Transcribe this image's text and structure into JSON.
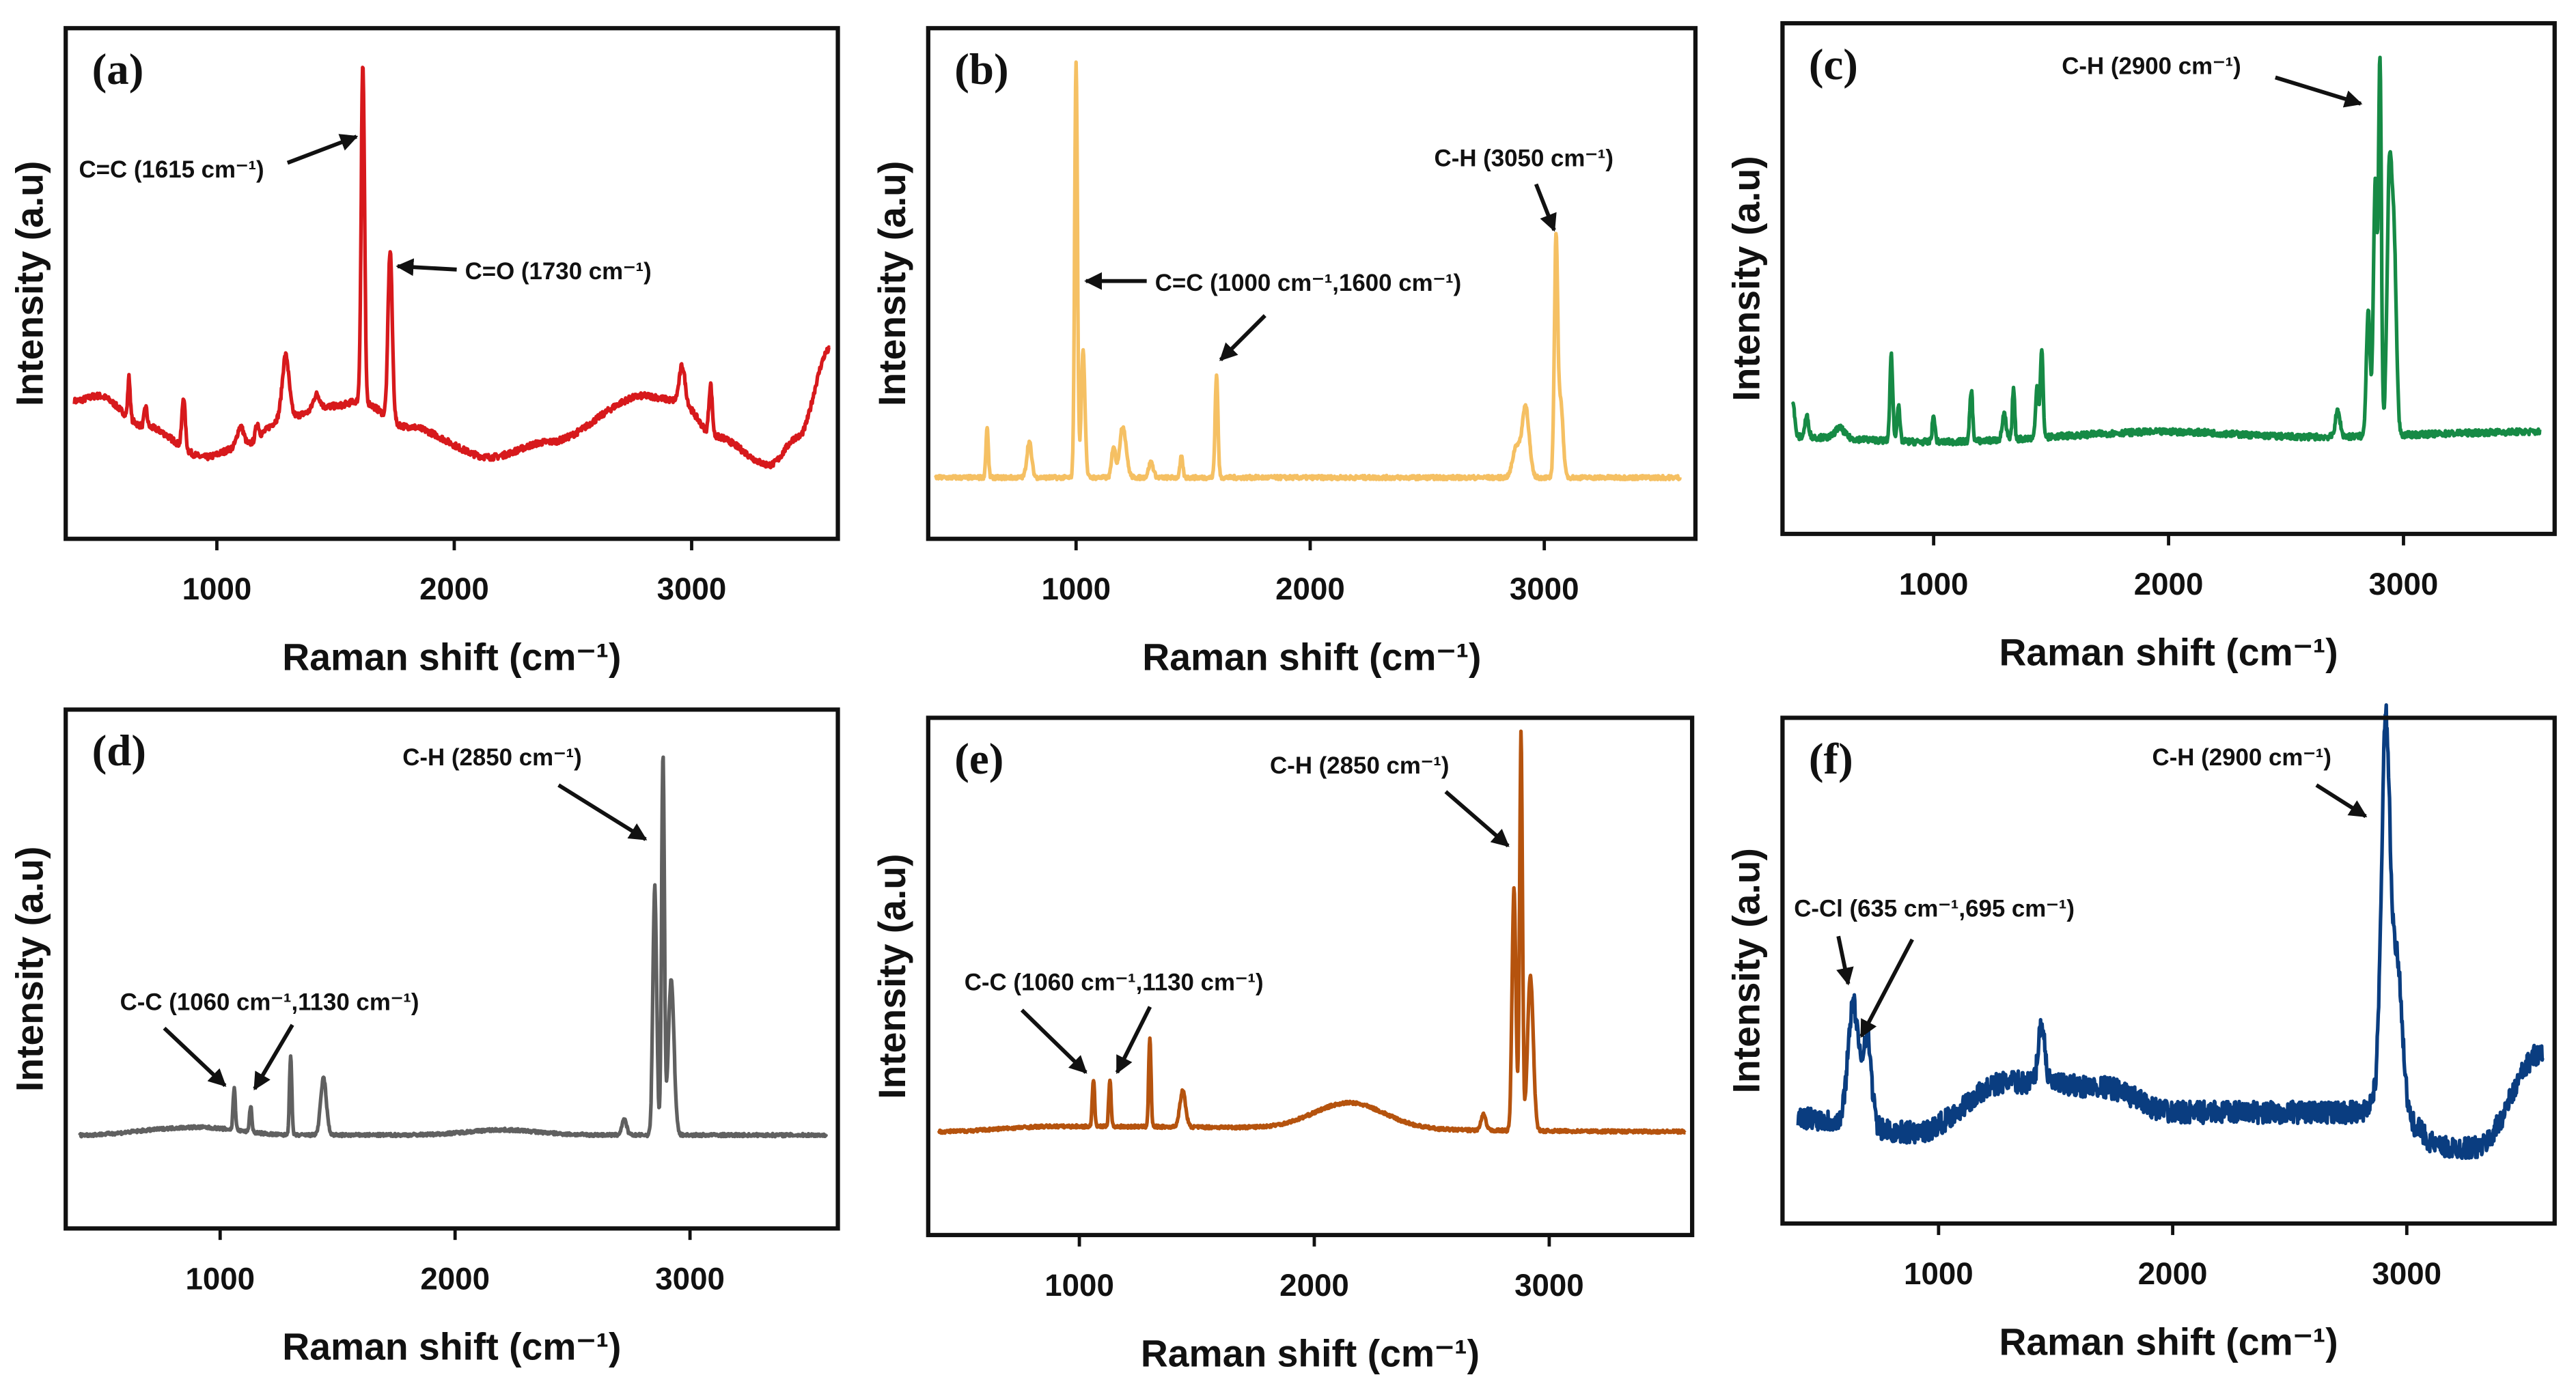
{
  "chart_data": [
    {
      "type": "line",
      "panel_label": "(a)",
      "color": "#d7191c",
      "xlabel": "Raman shift (cm⁻¹)",
      "ylabel": "Intensity (a.u)",
      "xlim": [
        360,
        3620
      ],
      "ylim": [
        0,
        1
      ],
      "xticks": [
        "1000",
        "2000",
        "3000"
      ],
      "baseline": [
        [
          400,
          0.27
        ],
        [
          500,
          0.28
        ],
        [
          700,
          0.22
        ],
        [
          950,
          0.16
        ],
        [
          1100,
          0.18
        ],
        [
          1300,
          0.24
        ],
        [
          1500,
          0.26
        ],
        [
          1600,
          0.27
        ],
        [
          1800,
          0.22
        ],
        [
          2150,
          0.16
        ],
        [
          2400,
          0.19
        ],
        [
          2800,
          0.28
        ],
        [
          2950,
          0.27
        ],
        [
          3100,
          0.2
        ],
        [
          3330,
          0.145
        ],
        [
          3450,
          0.2
        ],
        [
          3580,
          0.37
        ]
      ],
      "peaks": [
        [
          630,
          0.08,
          5
        ],
        [
          700,
          0.04,
          6
        ],
        [
          860,
          0.1,
          7
        ],
        [
          1100,
          0.04,
          14
        ],
        [
          1170,
          0.03,
          7
        ],
        [
          1290,
          0.12,
          14
        ],
        [
          1420,
          0.03,
          14
        ],
        [
          1615,
          0.66,
          7
        ],
        [
          1730,
          0.33,
          9
        ],
        [
          2960,
          0.07,
          12
        ],
        [
          3080,
          0.1,
          7
        ]
      ],
      "noise": 0.006,
      "annotations": [
        {
          "text": "C=C (1615 cm⁻¹)",
          "peak": 1615
        },
        {
          "text": "C=O (1730 cm⁻¹)",
          "peak": 1730
        }
      ]
    },
    {
      "type": "line",
      "panel_label": "(b)",
      "color": "#f5c063",
      "xlabel": "Raman shift (cm⁻¹)",
      "ylabel": "Intensity (a.u)",
      "xlim": [
        360,
        3620
      ],
      "ylim": [
        0,
        1
      ],
      "xticks": [
        "1000",
        "2000",
        "3000"
      ],
      "baseline": [
        [
          400,
          0.12
        ],
        [
          3580,
          0.12
        ]
      ],
      "peaks": [
        [
          620,
          0.1,
          5
        ],
        [
          800,
          0.07,
          10
        ],
        [
          1000,
          0.81,
          6
        ],
        [
          1030,
          0.25,
          8
        ],
        [
          1160,
          0.06,
          8
        ],
        [
          1200,
          0.1,
          14
        ],
        [
          1320,
          0.03,
          10
        ],
        [
          1450,
          0.04,
          6
        ],
        [
          1600,
          0.2,
          6
        ],
        [
          2880,
          0.06,
          15
        ],
        [
          2920,
          0.14,
          15
        ],
        [
          3050,
          0.46,
          7
        ],
        [
          3070,
          0.15,
          10
        ]
      ],
      "noise": 0.004,
      "annotations": [
        {
          "text": "C-H (3050 cm⁻¹)",
          "peak": 3050
        },
        {
          "text": "C=C (1000 cm⁻¹,1600 cm⁻¹)",
          "peak": 1000
        }
      ]
    },
    {
      "type": "line",
      "panel_label": "(c)",
      "color": "#168a45",
      "xlabel": "Raman shift (cm⁻¹)",
      "ylabel": "Intensity (a.u)",
      "xlim": [
        360,
        3620
      ],
      "ylim": [
        0,
        1
      ],
      "xticks": [
        "1000",
        "2000",
        "3000"
      ],
      "baseline": [
        [
          400,
          0.19
        ],
        [
          1000,
          0.18
        ],
        [
          2000,
          0.2
        ],
        [
          2600,
          0.19
        ],
        [
          3580,
          0.2
        ]
      ],
      "peaks": [
        [
          400,
          0.07,
          8
        ],
        [
          460,
          0.04,
          8
        ],
        [
          600,
          0.02,
          20
        ],
        [
          820,
          0.17,
          6
        ],
        [
          850,
          0.07,
          6
        ],
        [
          1000,
          0.05,
          6
        ],
        [
          1160,
          0.1,
          6
        ],
        [
          1300,
          0.05,
          8
        ],
        [
          1340,
          0.1,
          5
        ],
        [
          1440,
          0.1,
          6
        ],
        [
          1460,
          0.17,
          6
        ],
        [
          2720,
          0.05,
          10
        ],
        [
          2850,
          0.25,
          8
        ],
        [
          2880,
          0.5,
          8
        ],
        [
          2900,
          0.72,
          6
        ],
        [
          2940,
          0.5,
          10
        ],
        [
          2960,
          0.35,
          10
        ]
      ],
      "noise": 0.006,
      "annotations": [
        {
          "text": "C-H (2900 cm⁻¹)",
          "peak": 2900
        }
      ]
    },
    {
      "type": "line",
      "panel_label": "(d)",
      "color": "#606060",
      "xlabel": "Raman shift (cm⁻¹)",
      "ylabel": "Intensity (a.u)",
      "xlim": [
        360,
        3620
      ],
      "ylim": [
        0,
        1
      ],
      "xticks": [
        "1000",
        "2000",
        "3000"
      ],
      "baseline": [
        [
          400,
          0.18
        ],
        [
          900,
          0.195
        ],
        [
          1300,
          0.18
        ],
        [
          3580,
          0.18
        ]
      ],
      "peaks": [
        [
          1060,
          0.08,
          5
        ],
        [
          1130,
          0.05,
          5
        ],
        [
          1300,
          0.15,
          5
        ],
        [
          1440,
          0.11,
          12
        ],
        [
          2200,
          0.01,
          150
        ],
        [
          2720,
          0.03,
          10
        ],
        [
          2850,
          0.48,
          8
        ],
        [
          2885,
          0.73,
          6
        ],
        [
          2920,
          0.3,
          12
        ]
      ],
      "noise": 0.003,
      "annotations": [
        {
          "text": "C-H (2850 cm⁻¹)",
          "peak": 2850
        },
        {
          "text": "C-C (1060 cm⁻¹,1130 cm⁻¹)",
          "peak": 1060
        }
      ]
    },
    {
      "type": "line",
      "panel_label": "(e)",
      "color": "#b5530e",
      "xlabel": "Raman shift (cm⁻¹)",
      "ylabel": "Intensity (a.u)",
      "xlim": [
        360,
        3620
      ],
      "ylim": [
        0,
        1
      ],
      "xticks": [
        "1000",
        "2000",
        "3000"
      ],
      "baseline": [
        [
          400,
          0.2
        ],
        [
          900,
          0.21
        ],
        [
          3580,
          0.2
        ]
      ],
      "peaks": [
        [
          1060,
          0.09,
          5
        ],
        [
          1130,
          0.09,
          5
        ],
        [
          1300,
          0.17,
          5
        ],
        [
          1440,
          0.07,
          12
        ],
        [
          2150,
          0.05,
          150
        ],
        [
          2720,
          0.03,
          10
        ],
        [
          2850,
          0.47,
          8
        ],
        [
          2880,
          0.77,
          6
        ],
        [
          2920,
          0.3,
          12
        ]
      ],
      "noise": 0.003,
      "annotations": [
        {
          "text": "C-H (2850 cm⁻¹)",
          "peak": 2850
        },
        {
          "text": "C-C (1060 cm⁻¹,1130 cm⁻¹)",
          "peak": 1060
        }
      ]
    },
    {
      "type": "line",
      "panel_label": "(f)",
      "color": "#0a3d80",
      "xlabel": "Raman shift (cm⁻¹)",
      "ylabel": "Intensity (a.u)",
      "xlim": [
        360,
        3620
      ],
      "ylim": [
        0,
        1
      ],
      "xticks": [
        "1000",
        "2000",
        "3000"
      ],
      "baseline": [
        [
          380,
          0.21
        ],
        [
          900,
          0.18
        ],
        [
          1300,
          0.28
        ],
        [
          1700,
          0.27
        ],
        [
          2000,
          0.22
        ],
        [
          2800,
          0.22
        ],
        [
          2880,
          0.25
        ],
        [
          3000,
          0.2
        ],
        [
          3150,
          0.15
        ],
        [
          3300,
          0.15
        ],
        [
          3580,
          0.34
        ]
      ],
      "peaks": [
        [
          635,
          0.24,
          22
        ],
        [
          695,
          0.18,
          18
        ],
        [
          1440,
          0.12,
          14
        ],
        [
          2910,
          0.74,
          18
        ],
        [
          2960,
          0.3,
          22
        ]
      ],
      "noise": 0.022,
      "annotations": [
        {
          "text": "C-H (2900 cm⁻¹)",
          "peak": 2900
        },
        {
          "text": "C-Cl (635 cm⁻¹,695 cm⁻¹)",
          "peak": 635
        }
      ]
    }
  ]
}
